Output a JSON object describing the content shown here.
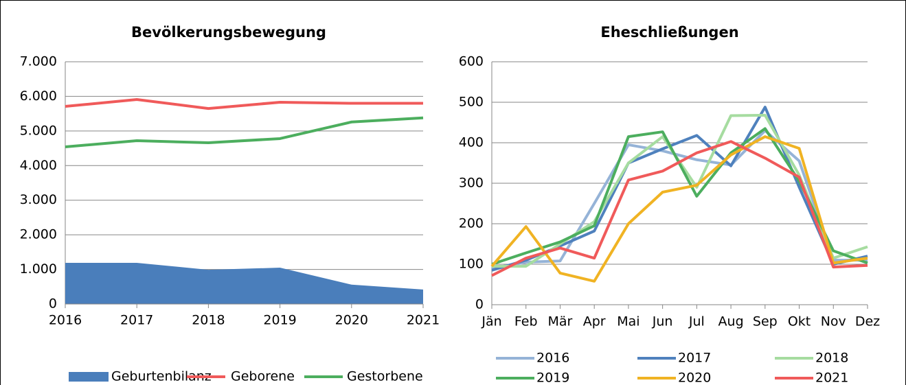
{
  "chart_data": [
    {
      "type": "line",
      "title": "Bevölkerungsbewegung",
      "x": [
        2016,
        2017,
        2018,
        2019,
        2020,
        2021
      ],
      "xlim": [
        2016,
        2021
      ],
      "xticks": [
        2016,
        2017,
        2018,
        2019,
        2020,
        2021
      ],
      "ylim": [
        0,
        7000
      ],
      "yticks": [
        0,
        {
          "value": 1000,
          "label": "1.000"
        },
        {
          "value": 2000,
          "label": "2.000"
        },
        {
          "value": 3000,
          "label": "3.000"
        },
        {
          "value": 4000,
          "label": "4.000"
        },
        {
          "value": 5000,
          "label": "5.000"
        },
        {
          "value": 6000,
          "label": "6.000"
        },
        {
          "value": 7000,
          "label": "7.000"
        }
      ],
      "grid": true,
      "legend": "bottom",
      "series": [
        {
          "name": "Geburtenbilanz",
          "type": "area",
          "color": "#4a7ebb",
          "values": [
            1190,
            1190,
            990,
            1050,
            560,
            420
          ]
        },
        {
          "name": "Geborene",
          "type": "line",
          "color": "#f05a5a",
          "values": [
            5710,
            5910,
            5650,
            5830,
            5800,
            5800
          ]
        },
        {
          "name": "Gestorbene",
          "type": "line",
          "color": "#4cae5e",
          "values": [
            4540,
            4720,
            4660,
            4780,
            5260,
            5380
          ]
        }
      ]
    },
    {
      "type": "line",
      "title": "Eheschließungen",
      "categories": [
        "Jän",
        "Feb",
        "Mär",
        "Apr",
        "Mai",
        "Jun",
        "Jul",
        "Aug",
        "Sep",
        "Okt",
        "Nov",
        "Dez"
      ],
      "ylim": [
        0,
        600
      ],
      "yticks": [
        0,
        100,
        200,
        300,
        400,
        500,
        600
      ],
      "grid": true,
      "legend": "bottom",
      "series": [
        {
          "name": "2016",
          "type": "line",
          "color": "#95b3d7",
          "values": [
            90,
            105,
            108,
            250,
            395,
            380,
            358,
            345,
            430,
            355,
            110,
            110
          ]
        },
        {
          "name": "2017",
          "type": "line",
          "color": "#4f81bd",
          "values": [
            85,
            110,
            145,
            182,
            350,
            385,
            418,
            343,
            488,
            290,
            100,
            120
          ]
        },
        {
          "name": "2018",
          "type": "line",
          "color": "#a6dca0",
          "values": [
            95,
            95,
            150,
            205,
            350,
            415,
            290,
            467,
            468,
            320,
            115,
            143
          ]
        },
        {
          "name": "2019",
          "type": "line",
          "color": "#4cae5e",
          "values": [
            100,
            128,
            155,
            195,
            415,
            427,
            268,
            375,
            435,
            305,
            133,
            103
          ]
        },
        {
          "name": "2020",
          "type": "line",
          "color": "#f0b323",
          "values": [
            95,
            193,
            78,
            58,
            200,
            278,
            295,
            370,
            415,
            386,
            103,
            115
          ]
        },
        {
          "name": "2021",
          "type": "line",
          "color": "#f05a5a",
          "values": [
            72,
            115,
            140,
            115,
            308,
            330,
            375,
            403,
            362,
            315,
            93,
            97
          ]
        }
      ]
    }
  ]
}
